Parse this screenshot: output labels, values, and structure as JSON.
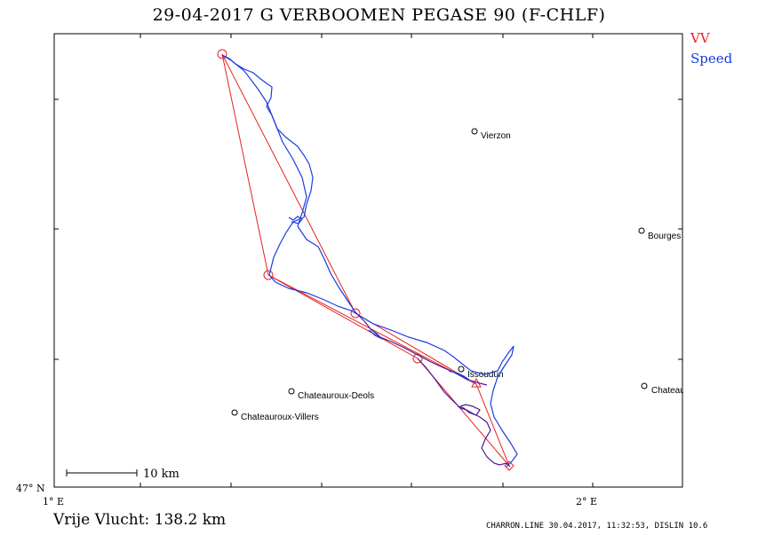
{
  "title": "29-04-2017   G VERBOOMEN   PEGASE 90 (F-CHLF)",
  "legend": {
    "vv": "VV",
    "speed": "Speed",
    "colors": {
      "vv": "#e82020",
      "speed": "#1a3de0",
      "track": "#4a1a9a"
    }
  },
  "axes": {
    "x_left_label": "1° E",
    "x_right_label": "2° E",
    "y_bottom_label": "47° N"
  },
  "cities": [
    {
      "name": "Vierzon"
    },
    {
      "name": "Bourges"
    },
    {
      "name": "Issoudun"
    },
    {
      "name": "Chateauroux-Deols"
    },
    {
      "name": "Chateauroux-Villers"
    },
    {
      "name": "Chateaumeillant"
    }
  ],
  "scale_bar": {
    "label": "10 km"
  },
  "distance_label": "Vrije Vlucht:  138.2 km",
  "footer": "CHARRON.LINE 30.04.2017, 11:32:53, DISLIN 10.6"
}
